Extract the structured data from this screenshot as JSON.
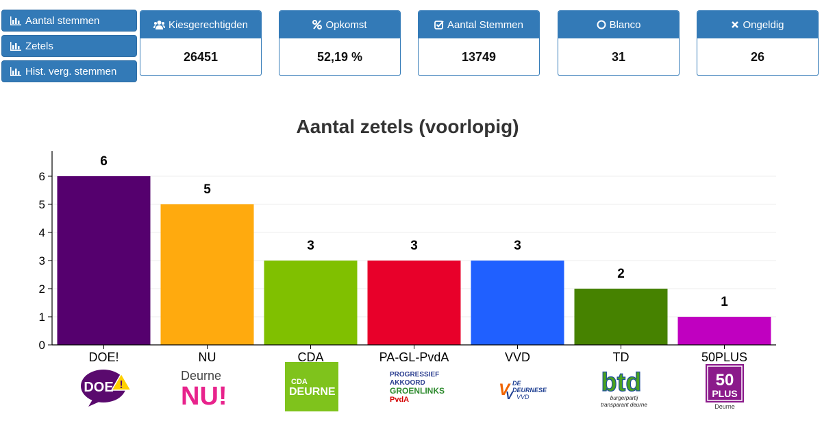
{
  "nav": {
    "items": [
      {
        "label": "Aantal stemmen",
        "icon": "bar-chart-icon"
      },
      {
        "label": "Zetels",
        "icon": "bar-chart-icon"
      },
      {
        "label": "Hist. verg. stemmen",
        "icon": "bar-chart-icon"
      }
    ]
  },
  "stats": [
    {
      "label": "Kiesgerechtigden",
      "value": "26451",
      "icon": "users-icon"
    },
    {
      "label": "Opkomst",
      "value": "52,19 %",
      "icon": "percent-icon"
    },
    {
      "label": "Aantal Stemmen",
      "value": "13749",
      "icon": "check-square-icon"
    },
    {
      "label": "Blanco",
      "value": "31",
      "icon": "circle-icon"
    },
    {
      "label": "Ongeldig",
      "value": "26",
      "icon": "times-icon"
    }
  ],
  "colors": {
    "accent": "#337ab7"
  },
  "logos": {
    "doe": "DOE",
    "nu_top": "Deurne",
    "nu_bottom": "NU!",
    "cda_top": "CDA",
    "cda_bottom": "DEURNE",
    "pagl_1": "PROGRESSIEF",
    "pagl_2": "AKKOORD",
    "pagl_3": "GROENLINKS",
    "pagl_4": "PvdA",
    "vvd_1": "DE",
    "vvd_2": "DEURNESE",
    "vvd_3": "VVD",
    "td_main": "btd",
    "td_sub1": "burgerpartij",
    "td_sub2": "transparant deurne",
    "plus_1": "50",
    "plus_2": "PLUS",
    "plus_3": "Deurne"
  },
  "chart_data": {
    "type": "bar",
    "title": "Aantal zetels (voorlopig)",
    "xlabel": "",
    "ylabel": "",
    "categories": [
      "DOE!",
      "NU",
      "CDA",
      "PA-GL-PvdA",
      "VVD",
      "TD",
      "50PLUS"
    ],
    "values": [
      6,
      5,
      3,
      3,
      3,
      2,
      1
    ],
    "colors": [
      "#55006e",
      "#ffaa0e",
      "#80c000",
      "#e8002a",
      "#2060ff",
      "#468200",
      "#c000c0"
    ],
    "ylim": [
      0,
      6.9
    ],
    "yticks": [
      0,
      1,
      2,
      3,
      4,
      5,
      6
    ],
    "grid": true,
    "data_labels": true
  }
}
